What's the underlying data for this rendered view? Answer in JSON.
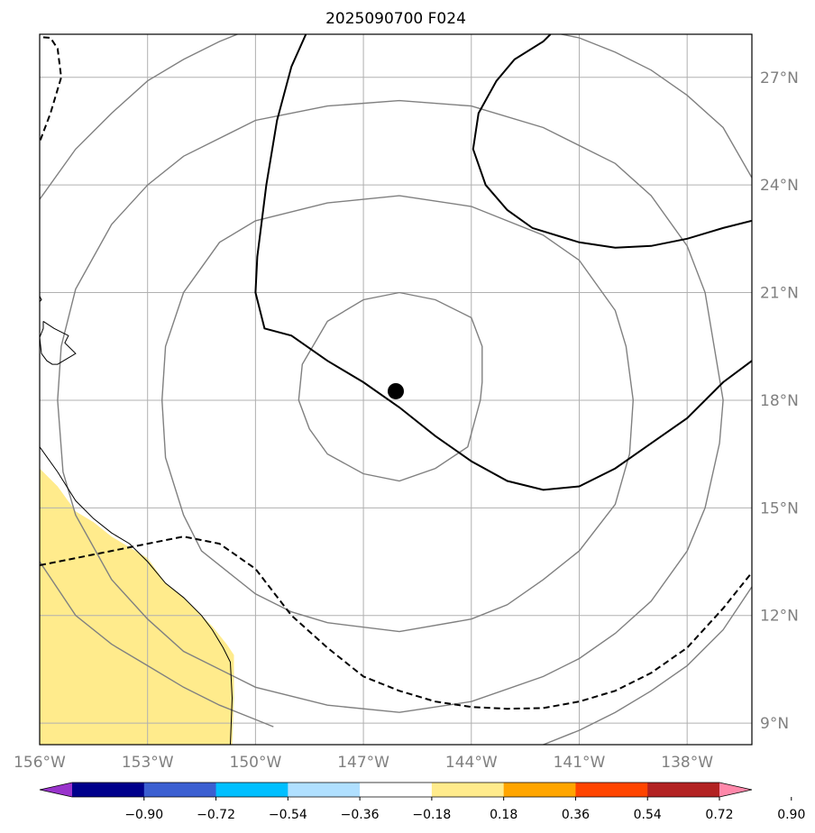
{
  "title": "2025090700 F024",
  "colors": {
    "grid": "#b0b0b0",
    "gray_contour": "#808080",
    "black_contour": "#000000",
    "anomaly_fill": "#ffeb8c",
    "coastline": "#000000"
  },
  "map": {
    "lon_range": [
      -156,
      -136.2
    ],
    "lat_range": [
      8.4,
      28.2
    ],
    "lon_ticks": [
      {
        "lon": -156,
        "label": "156°W"
      },
      {
        "lon": -153,
        "label": "153°W"
      },
      {
        "lon": -150,
        "label": "150°W"
      },
      {
        "lon": -147,
        "label": "147°W"
      },
      {
        "lon": -144,
        "label": "144°W"
      },
      {
        "lon": -141,
        "label": "141°W"
      },
      {
        "lon": -138,
        "label": "138°W"
      }
    ],
    "lat_ticks": [
      {
        "lat": 27,
        "label": "27°N"
      },
      {
        "lat": 24,
        "label": "24°N"
      },
      {
        "lat": 21,
        "label": "21°N"
      },
      {
        "lat": 18,
        "label": "18°N"
      },
      {
        "lat": 15,
        "label": "15°N"
      },
      {
        "lat": 12,
        "label": "12°N"
      },
      {
        "lat": 9,
        "label": "9°N"
      }
    ],
    "storm_center": {
      "lon": -146.1,
      "lat": 18.25
    },
    "gray_rings": [
      [
        [
          -146.0,
          21.0
        ],
        [
          -145.0,
          20.8
        ],
        [
          -144.0,
          20.3
        ],
        [
          -143.7,
          19.5
        ],
        [
          -143.7,
          18.5
        ],
        [
          -143.75,
          18.0
        ],
        [
          -144.1,
          16.7
        ],
        [
          -145.0,
          16.1
        ],
        [
          -146.0,
          15.75
        ],
        [
          -147.0,
          15.95
        ],
        [
          -148.0,
          16.5
        ],
        [
          -148.5,
          17.2
        ],
        [
          -148.8,
          18.0
        ],
        [
          -148.7,
          19.0
        ],
        [
          -148.0,
          20.2
        ],
        [
          -147.0,
          20.8
        ],
        [
          -146.0,
          21.0
        ]
      ],
      [
        [
          -146.0,
          23.7
        ],
        [
          -144.0,
          23.4
        ],
        [
          -142.0,
          22.6
        ],
        [
          -141.0,
          21.9
        ],
        [
          -140.0,
          20.5
        ],
        [
          -139.7,
          19.5
        ],
        [
          -139.5,
          18.0
        ],
        [
          -139.6,
          16.5
        ],
        [
          -140.0,
          15.1
        ],
        [
          -141.0,
          13.8
        ],
        [
          -142.0,
          13.0
        ],
        [
          -143.0,
          12.3
        ],
        [
          -144.0,
          11.9
        ],
        [
          -146.0,
          11.55
        ],
        [
          -148.0,
          11.8
        ],
        [
          -149.0,
          12.1
        ],
        [
          -150.0,
          12.6
        ],
        [
          -151.5,
          13.8
        ],
        [
          -152.0,
          14.8
        ],
        [
          -152.5,
          16.4
        ],
        [
          -152.6,
          18.0
        ],
        [
          -152.5,
          19.5
        ],
        [
          -152.0,
          21.0
        ],
        [
          -151.0,
          22.4
        ],
        [
          -150.0,
          23.0
        ],
        [
          -148.0,
          23.5
        ],
        [
          -146.0,
          23.7
        ]
      ],
      [
        [
          -146.0,
          26.35
        ],
        [
          -144.0,
          26.2
        ],
        [
          -142.0,
          25.6
        ],
        [
          -140.0,
          24.6
        ],
        [
          -139.0,
          23.7
        ],
        [
          -138.0,
          22.3
        ],
        [
          -137.5,
          21.0
        ],
        [
          -137.0,
          18.0
        ],
        [
          -137.1,
          16.8
        ],
        [
          -137.5,
          15.0
        ],
        [
          -138.0,
          13.8
        ],
        [
          -139.0,
          12.4
        ],
        [
          -140.0,
          11.5
        ],
        [
          -141.0,
          10.8
        ],
        [
          -142.0,
          10.3
        ],
        [
          -144.0,
          9.6
        ],
        [
          -146.0,
          9.3
        ],
        [
          -148.0,
          9.5
        ],
        [
          -150.0,
          10.0
        ],
        [
          -152.0,
          11.0
        ],
        [
          -153.0,
          11.9
        ],
        [
          -154.0,
          13.0
        ],
        [
          -155.0,
          14.8
        ],
        [
          -155.35,
          16.0
        ],
        [
          -155.5,
          18.0
        ],
        [
          -155.4,
          19.5
        ],
        [
          -155.0,
          21.1
        ],
        [
          -154.0,
          22.9
        ],
        [
          -153.0,
          24.0
        ],
        [
          -152.0,
          24.8
        ],
        [
          -150.0,
          25.8
        ],
        [
          -148.0,
          26.2
        ],
        [
          -146.0,
          26.35
        ]
      ],
      [
        [
          -156.0,
          13.5
        ],
        [
          -155.0,
          12.0
        ],
        [
          -154.0,
          11.2
        ],
        [
          -153.0,
          10.6
        ],
        [
          -152.0,
          10.0
        ],
        [
          -151.0,
          9.5
        ],
        [
          -150.0,
          9.1
        ],
        [
          -149.5,
          8.9
        ]
      ],
      [
        [
          -142.0,
          8.4
        ],
        [
          -141.0,
          8.8
        ],
        [
          -140.0,
          9.3
        ],
        [
          -139.0,
          9.9
        ],
        [
          -138.0,
          10.6
        ],
        [
          -137.0,
          11.6
        ],
        [
          -136.2,
          12.8
        ]
      ],
      [
        [
          -156.0,
          23.6
        ],
        [
          -155.0,
          25.0
        ],
        [
          -154.0,
          26.0
        ],
        [
          -153.0,
          26.9
        ],
        [
          -152.0,
          27.5
        ],
        [
          -151.0,
          28.0
        ],
        [
          -150.5,
          28.2
        ]
      ],
      [
        [
          -141.5,
          28.2
        ],
        [
          -141.0,
          28.1
        ],
        [
          -140.0,
          27.7
        ],
        [
          -139.0,
          27.2
        ],
        [
          -138.0,
          26.5
        ],
        [
          -137.0,
          25.6
        ],
        [
          -136.2,
          24.2
        ]
      ]
    ],
    "solid_contours": [
      [
        [
          -148.6,
          28.2
        ],
        [
          -149.0,
          27.3
        ],
        [
          -149.4,
          25.8
        ],
        [
          -149.7,
          24.0
        ],
        [
          -149.95,
          22.0
        ],
        [
          -150.0,
          21.0
        ],
        [
          -149.75,
          20.0
        ],
        [
          -149.0,
          19.8
        ],
        [
          -148.0,
          19.1
        ],
        [
          -147.0,
          18.5
        ],
        [
          -146.0,
          17.8
        ],
        [
          -145.0,
          17.0
        ],
        [
          -144.0,
          16.3
        ],
        [
          -143.0,
          15.75
        ],
        [
          -142.0,
          15.5
        ],
        [
          -141.0,
          15.6
        ],
        [
          -140.0,
          16.1
        ],
        [
          -139.0,
          16.8
        ],
        [
          -138.0,
          17.5
        ],
        [
          -137.0,
          18.5
        ],
        [
          -136.2,
          19.1
        ]
      ],
      [
        [
          -141.8,
          28.2
        ],
        [
          -142.0,
          28.0
        ],
        [
          -142.8,
          27.5
        ],
        [
          -143.3,
          26.9
        ],
        [
          -143.8,
          26.0
        ],
        [
          -143.95,
          25.0
        ],
        [
          -143.6,
          24.0
        ],
        [
          -143.0,
          23.3
        ],
        [
          -142.3,
          22.8
        ],
        [
          -141.0,
          22.4
        ],
        [
          -140.0,
          22.25
        ],
        [
          -139.0,
          22.3
        ],
        [
          -138.0,
          22.5
        ],
        [
          -137.0,
          22.8
        ],
        [
          -136.2,
          23.0
        ]
      ]
    ],
    "dashed_contours": [
      [
        [
          -157.0,
          28.2
        ],
        [
          -155.7,
          28.1
        ],
        [
          -155.5,
          27.8
        ],
        [
          -155.4,
          27.0
        ],
        [
          -155.7,
          26.0
        ],
        [
          -156.0,
          25.2
        ],
        [
          -156.2,
          25.0
        ]
      ],
      [
        [
          -156.0,
          13.4
        ],
        [
          -155.0,
          13.6
        ],
        [
          -154.0,
          13.8
        ],
        [
          -153.0,
          14.0
        ],
        [
          -152.0,
          14.2
        ],
        [
          -151.0,
          14.0
        ],
        [
          -150.0,
          13.3
        ],
        [
          -149.0,
          12.0
        ],
        [
          -148.0,
          11.1
        ],
        [
          -147.0,
          10.3
        ],
        [
          -146.0,
          9.9
        ],
        [
          -145.0,
          9.6
        ],
        [
          -144.0,
          9.45
        ],
        [
          -143.0,
          9.4
        ],
        [
          -142.0,
          9.42
        ],
        [
          -141.0,
          9.6
        ],
        [
          -140.0,
          9.9
        ],
        [
          -139.0,
          10.4
        ],
        [
          -138.0,
          11.1
        ],
        [
          -137.0,
          12.2
        ],
        [
          -136.2,
          13.2
        ]
      ]
    ],
    "anomaly_area": [
      [
        -156.0,
        16.1
      ],
      [
        -155.5,
        15.6
      ],
      [
        -155.0,
        14.9
      ],
      [
        -154.5,
        14.6
      ],
      [
        -154.0,
        14.2
      ],
      [
        -153.5,
        13.9
      ],
      [
        -153.0,
        13.6
      ],
      [
        -152.5,
        12.9
      ],
      [
        -152.0,
        12.5
      ],
      [
        -151.2,
        11.7
      ],
      [
        -150.8,
        11.2
      ],
      [
        -150.6,
        10.9
      ],
      [
        -150.6,
        9.7
      ],
      [
        -150.65,
        8.4
      ],
      [
        -156.0,
        8.4
      ]
    ],
    "coastlines": [
      [
        [
          -156.0,
          16.7
        ],
        [
          -155.5,
          16.0
        ],
        [
          -155.0,
          15.2
        ],
        [
          -154.5,
          14.7
        ],
        [
          -154.0,
          14.3
        ],
        [
          -153.5,
          14.0
        ],
        [
          -153.0,
          13.5
        ],
        [
          -152.5,
          12.9
        ],
        [
          -152.0,
          12.5
        ],
        [
          -151.5,
          12.0
        ],
        [
          -151.2,
          11.6
        ],
        [
          -150.9,
          11.1
        ],
        [
          -150.7,
          10.7
        ],
        [
          -150.65,
          9.7
        ],
        [
          -150.7,
          8.4
        ]
      ],
      [
        [
          -155.9,
          20.2
        ],
        [
          -155.6,
          20.0
        ],
        [
          -155.2,
          19.8
        ],
        [
          -155.3,
          19.6
        ],
        [
          -155.0,
          19.3
        ],
        [
          -155.5,
          19.0
        ],
        [
          -155.65,
          19.0
        ],
        [
          -155.8,
          19.1
        ],
        [
          -155.95,
          19.3
        ],
        [
          -156.0,
          19.75
        ],
        [
          -155.9,
          20.0
        ],
        [
          -155.9,
          20.2
        ]
      ],
      [
        [
          -156.0,
          20.75
        ],
        [
          -155.95,
          20.8
        ],
        [
          -156.0,
          20.9
        ]
      ]
    ]
  },
  "colorbar": {
    "colors": [
      "#9933cc",
      "#00008b",
      "#3b5fd1",
      "#00bfff",
      "#b0e0ff",
      "#ffffff",
      "#ffeb8c",
      "#ffa500",
      "#ff4500",
      "#b22222",
      "#ff88aa"
    ],
    "ticks": [
      "−0.90",
      "−0.72",
      "−0.54",
      "−0.36",
      "−0.18",
      "0.18",
      "0.36",
      "0.54",
      "0.72",
      "0.90"
    ]
  }
}
